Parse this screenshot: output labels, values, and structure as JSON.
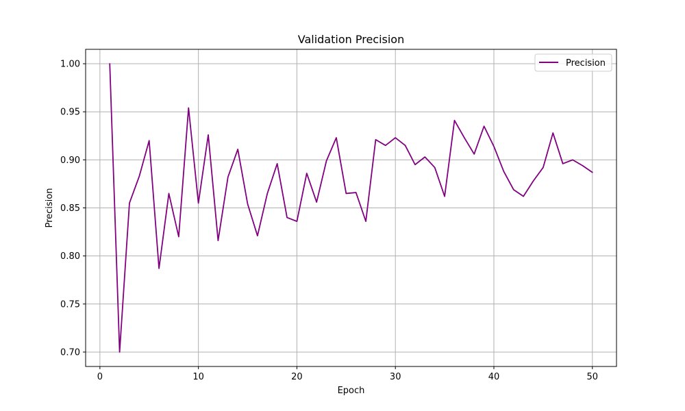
{
  "chart_data": {
    "type": "line",
    "title": "Validation Precision",
    "xlabel": "Epoch",
    "ylabel": "Precision",
    "xlim": [
      -1.45,
      52.45
    ],
    "ylim": [
      0.685,
      1.015
    ],
    "xticks": [
      0,
      10,
      20,
      30,
      40,
      50
    ],
    "yticks": [
      0.7,
      0.75,
      0.8,
      0.85,
      0.9,
      0.95,
      1.0
    ],
    "ytick_labels": [
      "0.70",
      "0.75",
      "0.80",
      "0.85",
      "0.90",
      "0.95",
      "1.00"
    ],
    "xtick_labels": [
      "0",
      "10",
      "20",
      "30",
      "40",
      "50"
    ],
    "grid": true,
    "legend_position": "top-right",
    "series": [
      {
        "name": "Precision",
        "color": "#800080",
        "x": [
          1,
          2,
          3,
          4,
          5,
          6,
          7,
          8,
          9,
          10,
          11,
          12,
          13,
          14,
          15,
          16,
          17,
          18,
          19,
          20,
          21,
          22,
          23,
          24,
          25,
          26,
          27,
          28,
          29,
          30,
          31,
          32,
          33,
          34,
          35,
          36,
          37,
          38,
          39,
          40,
          41,
          42,
          43,
          44,
          45,
          46,
          47,
          48,
          49,
          50
        ],
        "y": [
          1.0,
          0.7,
          0.855,
          0.883,
          0.92,
          0.787,
          0.865,
          0.82,
          0.954,
          0.855,
          0.926,
          0.816,
          0.882,
          0.911,
          0.854,
          0.821,
          0.865,
          0.896,
          0.84,
          0.836,
          0.886,
          0.856,
          0.899,
          0.923,
          0.865,
          0.866,
          0.836,
          0.921,
          0.915,
          0.923,
          0.915,
          0.895,
          0.903,
          0.892,
          0.862,
          0.941,
          0.923,
          0.906,
          0.935,
          0.914,
          0.888,
          0.869,
          0.862,
          0.878,
          0.892,
          0.928,
          0.896,
          0.9,
          0.894,
          0.887
        ]
      }
    ]
  }
}
